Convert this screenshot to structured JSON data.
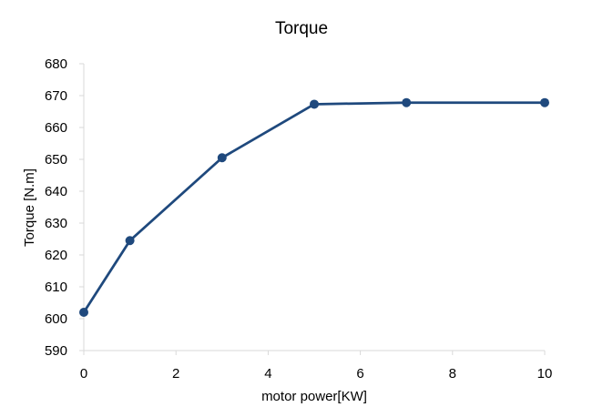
{
  "chart_data": {
    "type": "line",
    "title": "Torque",
    "xlabel": "motor power[KW]",
    "ylabel": "Torque [N.m]",
    "xlim": [
      0,
      10
    ],
    "ylim": [
      590,
      680
    ],
    "x_ticks": [
      0,
      2,
      4,
      6,
      8,
      10
    ],
    "y_ticks": [
      590,
      600,
      610,
      620,
      630,
      640,
      650,
      660,
      670,
      680
    ],
    "grid": false,
    "series": [
      {
        "color": "#1F497D",
        "marker": "circle",
        "points": [
          {
            "x": 0,
            "y": 602
          },
          {
            "x": 1,
            "y": 624.5
          },
          {
            "x": 3,
            "y": 650.5
          },
          {
            "x": 5,
            "y": 667.3
          },
          {
            "x": 7,
            "y": 667.8
          },
          {
            "x": 10,
            "y": 667.8
          }
        ]
      }
    ]
  }
}
